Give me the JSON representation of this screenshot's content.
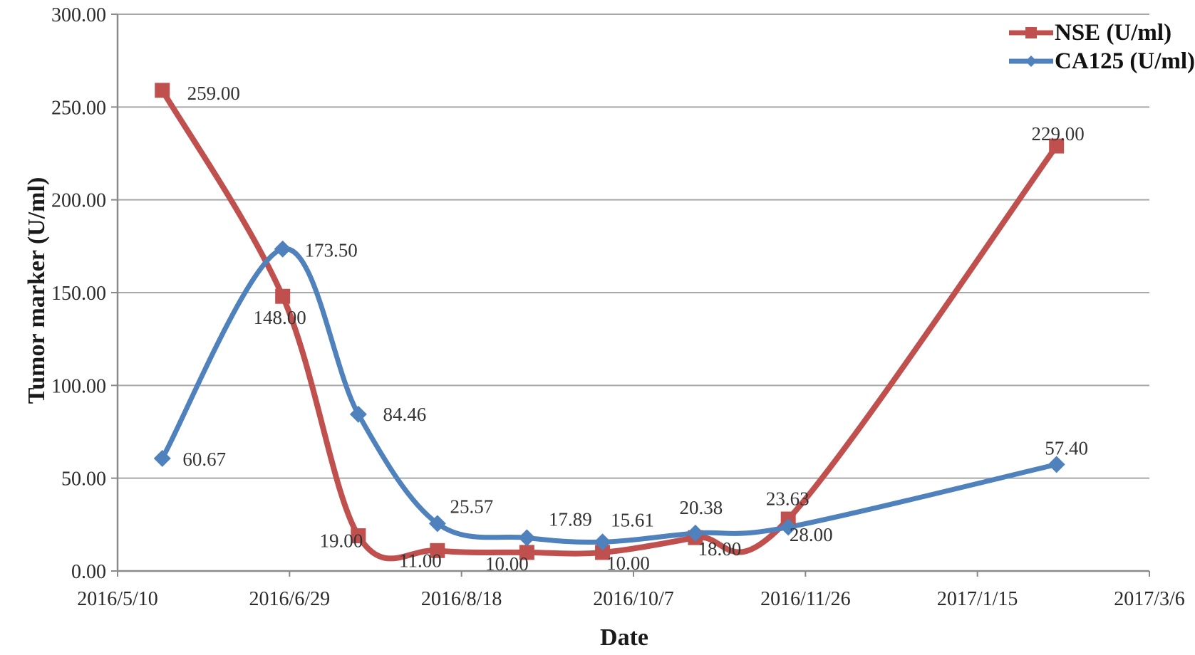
{
  "chart_data": {
    "type": "line",
    "smooth": true,
    "title": "",
    "xlabel": "Date",
    "ylabel": "Tumor marker (U/ml)",
    "ylim": [
      0,
      300
    ],
    "y_tick_step": 50,
    "y_tick_labels": [
      "0.00",
      "50.00",
      "100.00",
      "150.00",
      "200.00",
      "250.00",
      "300.00"
    ],
    "x_tick_labels": [
      "2016/5/10",
      "2016/6/29",
      "2016/8/18",
      "2016/10/7",
      "2016/11/26",
      "2017/1/15",
      "2017/3/6"
    ],
    "x_range_days": [
      0,
      300
    ],
    "x_days": [
      13,
      48,
      70,
      93,
      119,
      141,
      168,
      195,
      273
    ],
    "grid": "horizontal",
    "legend_position": "top-right",
    "axis_color": "#8a8a8a",
    "gridline_color": "#a8a8a8",
    "label_color": "#333333",
    "series": [
      {
        "name": "NSE (U/ml)",
        "color": "#C0504D",
        "marker": "square",
        "values": [
          259.0,
          148.0,
          19.0,
          11.0,
          10.0,
          10.0,
          18.0,
          28.0,
          229.0
        ],
        "labels": [
          "259.00",
          "148.00",
          "19.00",
          "11.00",
          "10.00",
          "10.00",
          "18.00",
          "28.00",
          "229.00"
        ],
        "label_offsets": [
          [
            72,
            4
          ],
          [
            -4,
            30
          ],
          [
            -24,
            7
          ],
          [
            -24,
            14
          ],
          [
            -28,
            16
          ],
          [
            36,
            15
          ],
          [
            34,
            16
          ],
          [
            32,
            22
          ],
          [
            2,
            -17
          ]
        ]
      },
      {
        "name": "CA125 (U/ml)",
        "color": "#4F81BD",
        "marker": "diamond",
        "values": [
          60.67,
          173.5,
          84.46,
          25.57,
          17.89,
          15.61,
          20.38,
          23.63,
          57.4
        ],
        "labels": [
          "60.67",
          "173.50",
          "84.46",
          "25.57",
          "17.89",
          "15.61",
          "20.38",
          "23.63",
          "57.40"
        ],
        "label_offsets": [
          [
            59,
            1
          ],
          [
            68,
            2
          ],
          [
            65,
            0
          ],
          [
            48,
            -24
          ],
          [
            61,
            -26
          ],
          [
            42,
            -31
          ],
          [
            8,
            -36
          ],
          [
            -1,
            -40
          ],
          [
            14,
            -23
          ]
        ]
      }
    ]
  }
}
